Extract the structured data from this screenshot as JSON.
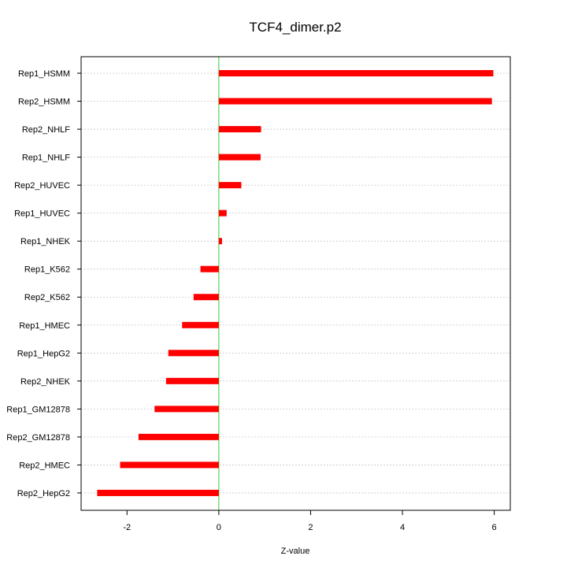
{
  "chart_data": {
    "type": "bar",
    "orientation": "horizontal",
    "title": "TCF4_dimer.p2",
    "xlabel": "Z-value",
    "ylabel": "",
    "categories": [
      "Rep1_HSMM",
      "Rep2_HSMM",
      "Rep2_NHLF",
      "Rep1_NHLF",
      "Rep2_HUVEC",
      "Rep1_HUVEC",
      "Rep1_NHEK",
      "Rep1_K562",
      "Rep2_K562",
      "Rep1_HMEC",
      "Rep1_HepG2",
      "Rep2_NHEK",
      "Rep1_GM12878",
      "Rep2_GM12878",
      "Rep2_HMEC",
      "Rep2_HepG2"
    ],
    "values": [
      5.98,
      5.95,
      0.92,
      0.91,
      0.49,
      0.17,
      0.07,
      -0.4,
      -0.55,
      -0.8,
      -1.1,
      -1.15,
      -1.4,
      -1.75,
      -2.15,
      -2.65
    ],
    "xlim": [
      -3.0,
      6.35
    ],
    "xticks": [
      -2,
      0,
      2,
      4,
      6
    ],
    "xtick_labels": [
      "-2",
      "0",
      "2",
      "4",
      "6"
    ],
    "reference_line": 0,
    "grid": "horizontal dotted",
    "colors": {
      "bar": "#ff0000",
      "zero_line": "#33cc33",
      "grid": "#c8c8c8",
      "frame": "#000000"
    }
  }
}
